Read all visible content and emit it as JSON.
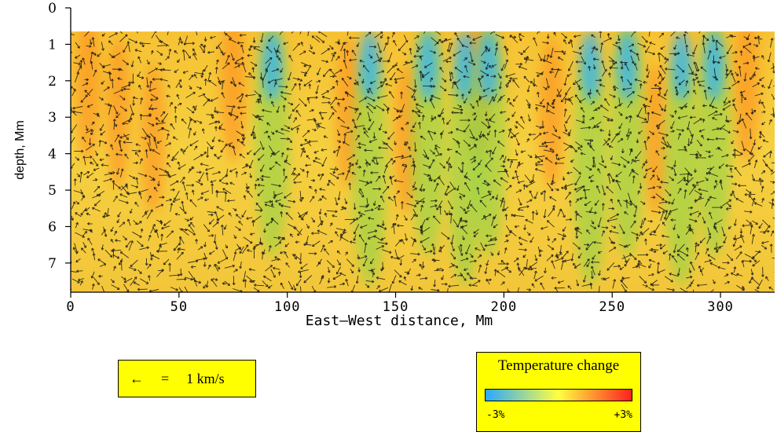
{
  "chart_data": {
    "type": "heatmap",
    "description_of_overlay": "velocity arrows",
    "xlabel": "East—West distance, Mm",
    "ylabel": "depth, Mm",
    "xlim": [
      0,
      325
    ],
    "ylim_top_to_bottom": [
      0,
      7.8
    ],
    "x_ticks": [
      0,
      50,
      100,
      150,
      200,
      250,
      300
    ],
    "x_tick_labels": [
      "0",
      "50",
      "100",
      "150",
      "200",
      "250",
      "300"
    ],
    "y_ticks": [
      0,
      1,
      2,
      3,
      4,
      5,
      6,
      7
    ],
    "y_tick_labels": [
      "0",
      "1",
      "2",
      "3",
      "4",
      "5",
      "6",
      "7"
    ],
    "data_top_depth": 0.65,
    "cool_columns_x": [
      93,
      138,
      165,
      182,
      193,
      240,
      257,
      282,
      297
    ],
    "warm_columns_x": [
      8,
      22,
      38,
      75,
      128,
      155,
      188,
      222,
      270,
      312
    ],
    "colorbar": {
      "title": "Temperature change",
      "min_label": "-3%",
      "max_label": "+3%",
      "colors": [
        "#2aa8ff",
        "#ffff40",
        "#ff2020"
      ]
    }
  },
  "velocity_scale": {
    "arrow": "←",
    "equals": "=",
    "value": "1 km/s"
  },
  "colors": {
    "plot_base": "#f4d03a",
    "warm": "#ff8a1c",
    "cool": "#2fb4ff",
    "green": "#8fd64a",
    "box_background": "#ffff00"
  }
}
